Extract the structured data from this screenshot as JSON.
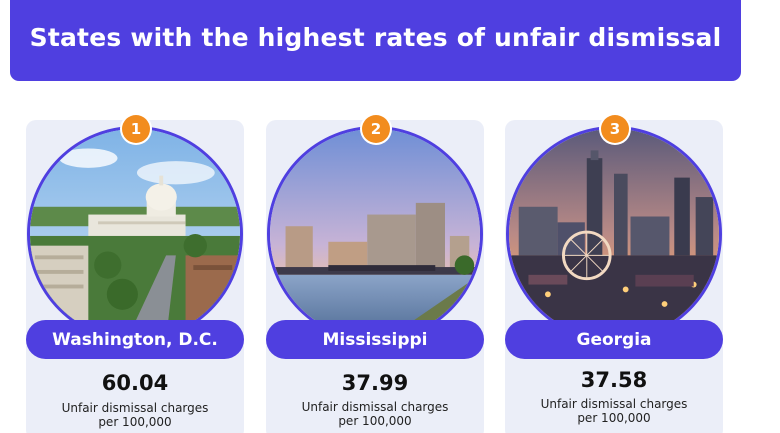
{
  "header": {
    "title": "States with the highest rates of unfair dismissal"
  },
  "accent_color": "#4f3fe0",
  "rank_badge_color": "#f28c1e",
  "cards": [
    {
      "rank": "1",
      "name": "Washington, D.C.",
      "value": "60.04",
      "desc_line1": "Unfair dismissal charges",
      "desc_line2": "per 100,000"
    },
    {
      "rank": "2",
      "name": "Mississippi",
      "value": "37.99",
      "desc_line1": "Unfair dismissal charges",
      "desc_line2": "per 100,000"
    },
    {
      "rank": "3",
      "name": "Georgia",
      "value": "37.58",
      "desc_line1": "Unfair dismissal charges",
      "desc_line2": "per 100,000"
    }
  ]
}
